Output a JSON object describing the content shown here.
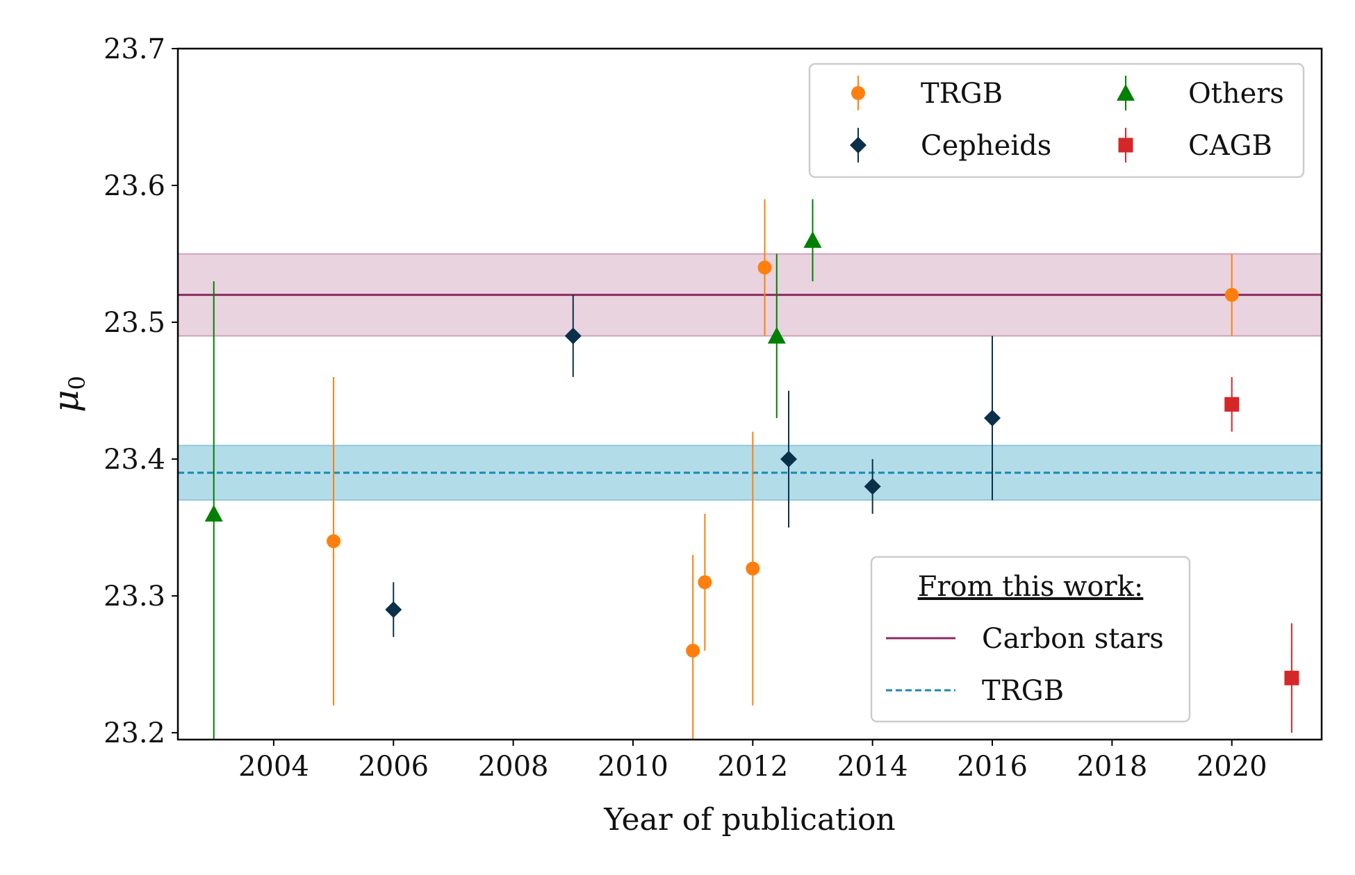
{
  "chart_data": {
    "type": "scatter",
    "xlabel": "Year of publication",
    "ylabel": "μ",
    "ylabel_sub": "0",
    "xlim": [
      2002.4,
      2021.5
    ],
    "ylim": [
      23.195,
      23.7
    ],
    "xticks": [
      2004,
      2006,
      2008,
      2010,
      2012,
      2014,
      2016,
      2018,
      2020
    ],
    "yticks": [
      23.2,
      23.3,
      23.4,
      23.5,
      23.6,
      23.7
    ],
    "ytick_labels": [
      "23.2",
      "23.3",
      "23.4",
      "23.5",
      "23.6",
      "23.7"
    ],
    "grid": false,
    "series": [
      {
        "name": "TRGB",
        "marker": "circle",
        "color": "#ff7f0e",
        "points": [
          {
            "x": 2005.0,
            "y": 23.34,
            "lo": 23.22,
            "hi": 23.46
          },
          {
            "x": 2011.0,
            "y": 23.26,
            "lo": 23.19,
            "hi": 23.33
          },
          {
            "x": 2011.2,
            "y": 23.31,
            "lo": 23.26,
            "hi": 23.36
          },
          {
            "x": 2012.0,
            "y": 23.32,
            "lo": 23.22,
            "hi": 23.42
          },
          {
            "x": 2012.2,
            "y": 23.54,
            "lo": 23.49,
            "hi": 23.59
          },
          {
            "x": 2020.0,
            "y": 23.52,
            "lo": 23.49,
            "hi": 23.55
          }
        ]
      },
      {
        "name": "Cepheids",
        "marker": "diamond",
        "color": "#0b3049",
        "points": [
          {
            "x": 2006.0,
            "y": 23.29,
            "lo": 23.27,
            "hi": 23.31
          },
          {
            "x": 2009.0,
            "y": 23.49,
            "lo": 23.46,
            "hi": 23.52
          },
          {
            "x": 2012.6,
            "y": 23.4,
            "lo": 23.35,
            "hi": 23.45
          },
          {
            "x": 2014.0,
            "y": 23.38,
            "lo": 23.36,
            "hi": 23.4
          },
          {
            "x": 2016.0,
            "y": 23.43,
            "lo": 23.37,
            "hi": 23.49
          }
        ]
      },
      {
        "name": "Others",
        "marker": "triangle",
        "color": "#008000",
        "points": [
          {
            "x": 2003.0,
            "y": 23.36,
            "lo": 23.19,
            "hi": 23.53
          },
          {
            "x": 2012.4,
            "y": 23.49,
            "lo": 23.43,
            "hi": 23.55
          },
          {
            "x": 2013.0,
            "y": 23.56,
            "lo": 23.53,
            "hi": 23.59
          }
        ]
      },
      {
        "name": "CAGB",
        "marker": "square",
        "color": "#d62728",
        "points": [
          {
            "x": 2020.0,
            "y": 23.44,
            "lo": 23.42,
            "hi": 23.46
          },
          {
            "x": 2021.0,
            "y": 23.24,
            "lo": 23.2,
            "hi": 23.28
          }
        ]
      }
    ],
    "bands": [
      {
        "name": "Carbon stars",
        "value": 23.52,
        "lo": 23.49,
        "hi": 23.55,
        "line_color": "#8b2a62",
        "fill_color": "#e8d3df",
        "dash": false
      },
      {
        "name": "TRGB",
        "value": 23.39,
        "lo": 23.37,
        "hi": 23.41,
        "line_color": "#1a8ab0",
        "fill_color": "#b3dce9",
        "dash": true
      }
    ],
    "legend_markers": {
      "position": "top-right",
      "entries": [
        "TRGB",
        "Others",
        "Cepheids",
        "CAGB"
      ]
    },
    "legend_bands": {
      "position": "lower-right",
      "title": "From this work:",
      "entries": [
        "Carbon stars",
        "TRGB"
      ]
    }
  }
}
